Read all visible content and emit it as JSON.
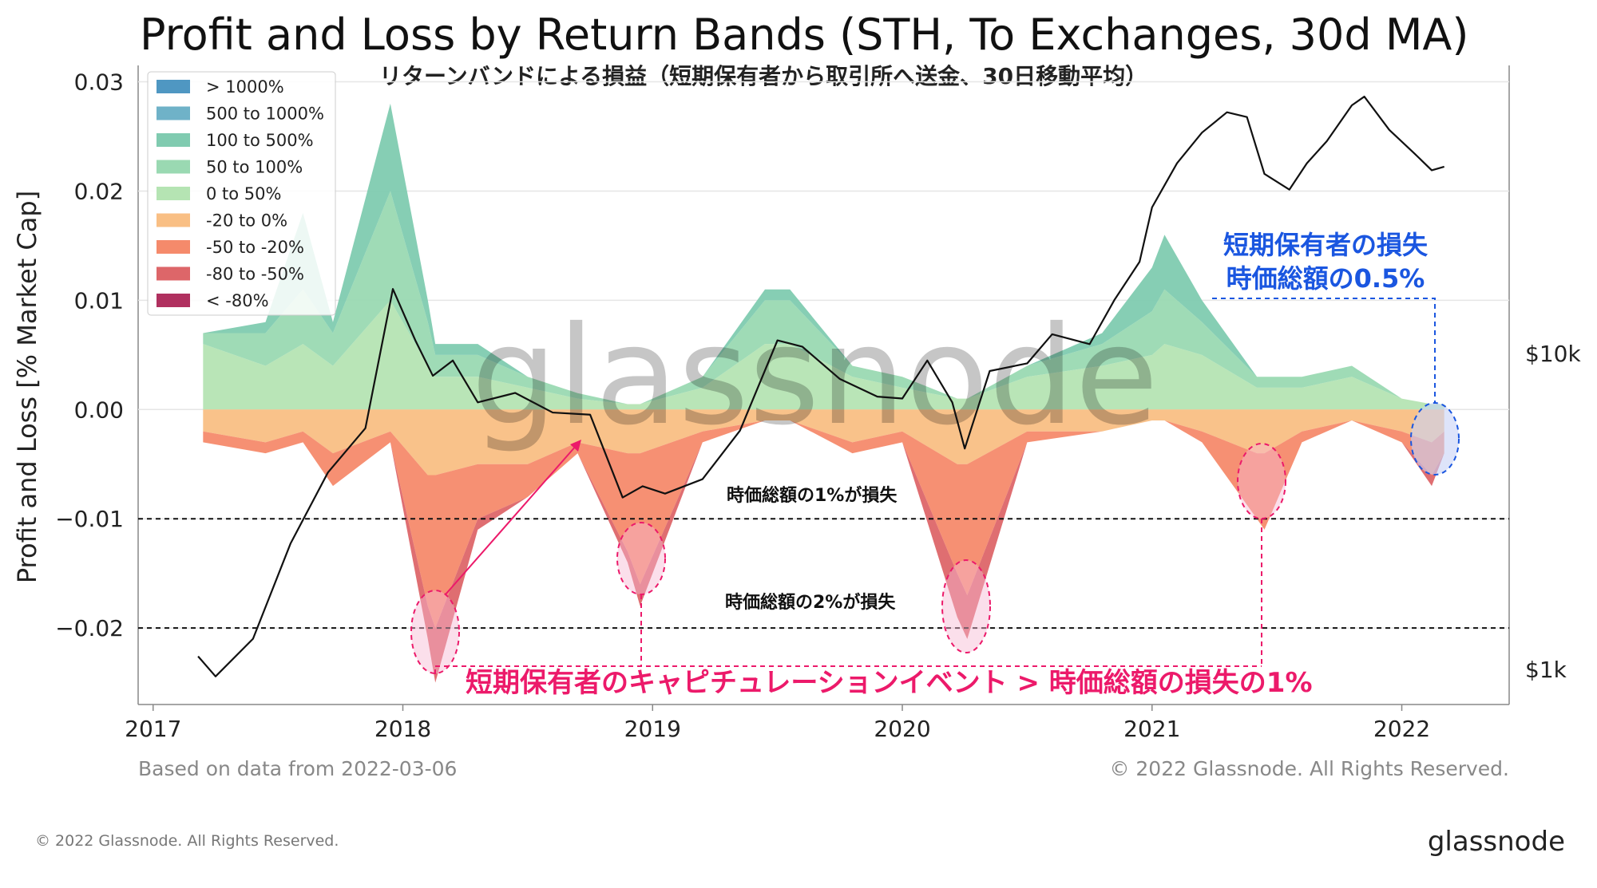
{
  "chart_data": {
    "type": "area",
    "title": "Profit and Loss by Return Bands (STH, To Exchanges, 30d MA)",
    "subtitle": "リターンバンドによる損益（短期保有者から取引所へ送金、30日移動平均）",
    "xlabel": "",
    "ylabel": "Profit and Loss [% Market Cap]",
    "ylim": [
      -0.027,
      0.0315
    ],
    "y_ticks": [
      "0.03",
      "0.02",
      "0.01",
      "0.00",
      "−0.01",
      "−0.02"
    ],
    "y_tick_values": [
      0.03,
      0.02,
      0.01,
      0.0,
      -0.01,
      -0.02
    ],
    "x_ticks": [
      "2017",
      "2018",
      "2019",
      "2020",
      "2021",
      "2022"
    ],
    "x_tick_values": [
      2017,
      2018,
      2019,
      2020,
      2021,
      2022
    ],
    "xlim": [
      2016.94,
      2022.43
    ],
    "y2_ticks": [
      "$10k",
      "$1k"
    ],
    "y2_tick_values": [
      10000,
      1000
    ],
    "y2_scale": "log",
    "grid": true,
    "legend_position": "top-left",
    "legend": [
      {
        "label": "> 1000%",
        "color": "#4f97c2"
      },
      {
        "label": "500 to 1000%",
        "color": "#6fb2c8"
      },
      {
        "label": "100 to 500%",
        "color": "#80cbb0"
      },
      {
        "label": "50 to 100%",
        "color": "#9ad9b2"
      },
      {
        "label": "0 to 50%",
        "color": "#b5e4b3"
      },
      {
        "label": "-20 to 0%",
        "color": "#f9bf84"
      },
      {
        "label": "-50 to -20%",
        "color": "#f58a6b"
      },
      {
        "label": "-80 to -50%",
        "color": "#dd6669"
      },
      {
        "label": "< -80%",
        "color": "#b0305f"
      }
    ],
    "x": [
      2017.2,
      2017.45,
      2017.6,
      2017.72,
      2017.95,
      2018.1,
      2018.13,
      2018.3,
      2018.5,
      2018.7,
      2018.9,
      2018.95,
      2019.2,
      2019.45,
      2019.55,
      2019.8,
      2020.0,
      2020.22,
      2020.26,
      2020.5,
      2020.8,
      2021.0,
      2021.05,
      2021.2,
      2021.42,
      2021.45,
      2021.6,
      2021.8,
      2022.0,
      2022.12,
      2022.17
    ],
    "series": [
      {
        "name": "0 to 50%",
        "values": [
          0.006,
          0.004,
          0.006,
          0.004,
          0.01,
          0.004,
          0.003,
          0.003,
          0.002,
          0.001,
          0.0005,
          0.0005,
          0.002,
          0.006,
          0.006,
          0.003,
          0.002,
          0.001,
          0.001,
          0.003,
          0.004,
          0.005,
          0.006,
          0.005,
          0.002,
          0.002,
          0.002,
          0.003,
          0.001,
          0.0005,
          0.0005
        ]
      },
      {
        "name": "50 to 100%",
        "values": [
          0.001,
          0.003,
          0.005,
          0.003,
          0.01,
          0.004,
          0.002,
          0.002,
          0.001,
          0.0005,
          0.0,
          0.0,
          0.001,
          0.004,
          0.004,
          0.001,
          0.001,
          0.0,
          0.0,
          0.001,
          0.002,
          0.004,
          0.005,
          0.003,
          0.001,
          0.001,
          0.001,
          0.001,
          0.0,
          0.0,
          0.0
        ]
      },
      {
        "name": "100 to 500%",
        "values": [
          0.0,
          0.001,
          0.007,
          0.001,
          0.008,
          0.002,
          0.001,
          0.001,
          0.0,
          0.0,
          0.0,
          0.0,
          0.0,
          0.001,
          0.001,
          0.0,
          0.0,
          0.0,
          0.0,
          0.0,
          0.001,
          0.004,
          0.005,
          0.002,
          0.0,
          0.0,
          0.0,
          0.0,
          0.0,
          0.0,
          0.0
        ]
      },
      {
        "name": "-20 to 0%",
        "values": [
          -0.002,
          -0.003,
          -0.002,
          -0.004,
          -0.002,
          -0.006,
          -0.006,
          -0.005,
          -0.005,
          -0.003,
          -0.004,
          -0.004,
          -0.002,
          -0.001,
          -0.001,
          -0.003,
          -0.002,
          -0.005,
          -0.005,
          -0.002,
          -0.002,
          -0.001,
          -0.001,
          -0.002,
          -0.004,
          -0.004,
          -0.002,
          -0.001,
          -0.002,
          -0.003,
          -0.002
        ]
      },
      {
        "name": "-50 to -20%",
        "values": [
          -0.001,
          -0.001,
          -0.001,
          -0.003,
          -0.001,
          -0.012,
          -0.014,
          -0.005,
          -0.003,
          -0.001,
          -0.009,
          -0.012,
          -0.001,
          0.0,
          0.0,
          -0.001,
          -0.001,
          -0.01,
          -0.012,
          -0.001,
          0.0,
          0.0,
          0.0,
          -0.001,
          -0.006,
          -0.007,
          -0.001,
          0.0,
          -0.001,
          -0.003,
          -0.002
        ]
      },
      {
        "name": "-80 to -50%",
        "values": [
          0.0,
          0.0,
          0.0,
          0.0,
          0.0,
          -0.003,
          -0.005,
          -0.001,
          0.0,
          0.0,
          -0.001,
          -0.002,
          0.0,
          0.0,
          0.0,
          0.0,
          0.0,
          -0.004,
          -0.004,
          0.0,
          0.0,
          0.0,
          0.0,
          0.0,
          0.0,
          0.0,
          0.0,
          0.0,
          0.0,
          -0.001,
          0.0
        ]
      }
    ],
    "price_series": {
      "x": [
        2017.18,
        2017.25,
        2017.4,
        2017.55,
        2017.7,
        2017.85,
        2017.96,
        2018.05,
        2018.12,
        2018.2,
        2018.3,
        2018.45,
        2018.6,
        2018.75,
        2018.88,
        2018.96,
        2019.05,
        2019.2,
        2019.35,
        2019.5,
        2019.6,
        2019.75,
        2019.9,
        2020.0,
        2020.1,
        2020.2,
        2020.25,
        2020.35,
        2020.5,
        2020.6,
        2020.75,
        2020.85,
        2020.95,
        2021.0,
        2021.1,
        2021.2,
        2021.3,
        2021.38,
        2021.45,
        2021.55,
        2021.62,
        2021.7,
        2021.8,
        2021.85,
        2021.95,
        2022.05,
        2022.12,
        2022.17
      ],
      "values": [
        1100,
        950,
        1250,
        2500,
        4200,
        5800,
        16000,
        11000,
        8500,
        9500,
        7000,
        7500,
        6500,
        6400,
        3500,
        3800,
        3600,
        4000,
        5700,
        11000,
        10500,
        8300,
        7300,
        7200,
        9500,
        7000,
        5000,
        8800,
        9300,
        11500,
        10700,
        14800,
        19500,
        29000,
        40000,
        50000,
        58000,
        56000,
        37000,
        33000,
        40000,
        47000,
        61000,
        65000,
        51000,
        43000,
        38000,
        39000
      ]
    },
    "reference_lines": [
      {
        "y": -0.01,
        "label": "時価総額の1%が損失"
      },
      {
        "y": -0.02,
        "label": "時価総額の2%が損失"
      }
    ],
    "annotations": {
      "blue_text": [
        "短期保有者の損失",
        "時価総額の0.5%"
      ],
      "pink_text": "短期保有者のキャピチュレーションイベント > 時価総額の損失の1%"
    }
  },
  "watermark": "glassnode",
  "footer": {
    "based_on": "Based on data from 2022-03-06",
    "copyright_plot": "© 2022 Glassnode. All Rights Reserved.",
    "copyright_page": "© 2022 Glassnode. All Rights Reserved.",
    "brand": "glassnode"
  }
}
